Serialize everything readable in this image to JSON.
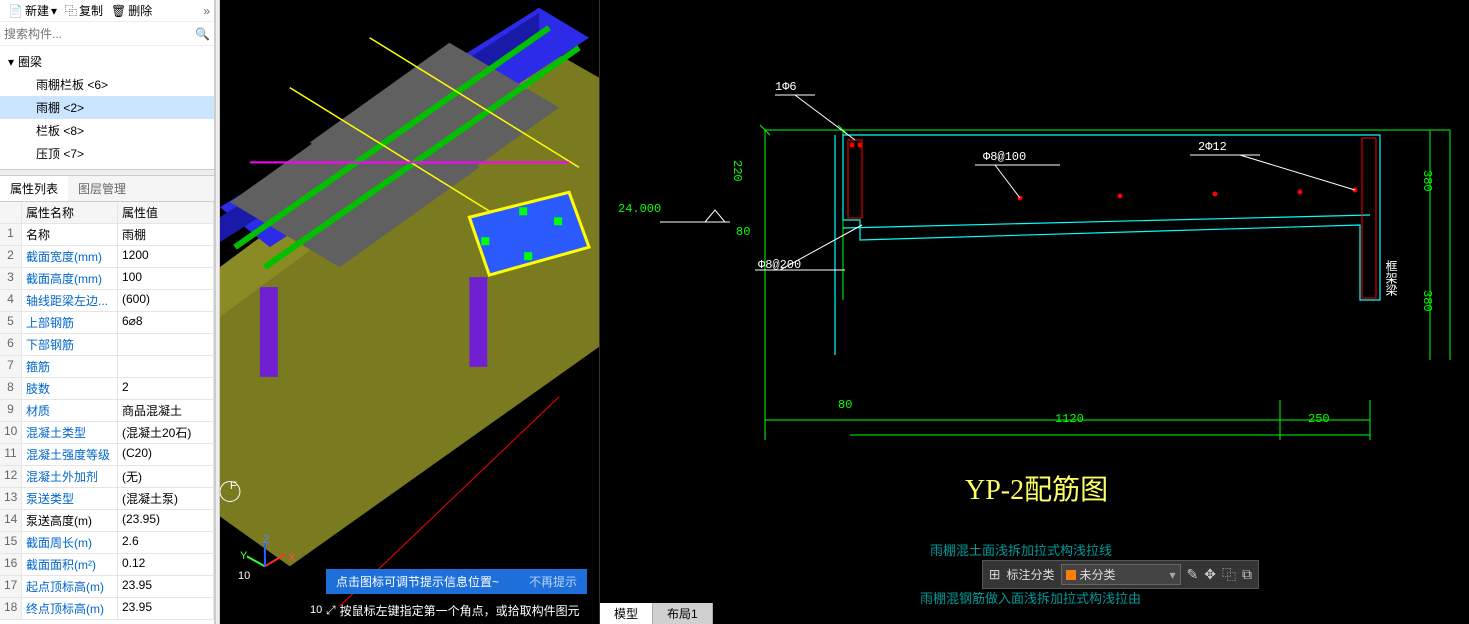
{
  "toolbar": {
    "new": "新建",
    "copy": "复制",
    "del": "删除"
  },
  "search": {
    "placeholder": "搜索构件..."
  },
  "tree": {
    "root": "圈梁",
    "items": [
      {
        "label": "雨棚栏板 <6>"
      },
      {
        "label": "雨棚 <2>",
        "sel": true
      },
      {
        "label": "栏板 <8>"
      },
      {
        "label": "压顶 <7>"
      }
    ]
  },
  "tabs": {
    "prop": "属性列表",
    "layer": "图层管理"
  },
  "header": {
    "name": "属性名称",
    "val": "属性值"
  },
  "props": [
    {
      "n": "名称",
      "v": "雨棚"
    },
    {
      "n": "截面宽度(mm)",
      "v": "1200",
      "b": 1
    },
    {
      "n": "截面高度(mm)",
      "v": "100",
      "b": 1
    },
    {
      "n": "轴线距梁左边...",
      "v": "(600)",
      "b": 1
    },
    {
      "n": "上部钢筋",
      "v": "6⌀8",
      "b": 1
    },
    {
      "n": "下部钢筋",
      "v": "",
      "b": 1
    },
    {
      "n": "箍筋",
      "v": "",
      "b": 1
    },
    {
      "n": "肢数",
      "v": "2",
      "b": 1
    },
    {
      "n": "材质",
      "v": "商品混凝土",
      "b": 1
    },
    {
      "n": "混凝土类型",
      "v": "(混凝土20石)",
      "b": 1
    },
    {
      "n": "混凝土强度等级",
      "v": "(C20)",
      "b": 1
    },
    {
      "n": "混凝土外加剂",
      "v": "(无)",
      "b": 1
    },
    {
      "n": "泵送类型",
      "v": "(混凝土泵)",
      "b": 1
    },
    {
      "n": "泵送高度(m)",
      "v": "(23.95)"
    },
    {
      "n": "截面周长(m)",
      "v": "2.6",
      "b": 1
    },
    {
      "n": "截面面积(m²)",
      "v": "0.12",
      "b": 1
    },
    {
      "n": "起点顶标高(m)",
      "v": "23.95",
      "b": 1
    },
    {
      "n": "终点顶标高(m)",
      "v": "23.95",
      "b": 1
    }
  ],
  "hint": {
    "msg": "点击图标可调节提示信息位置~",
    "dismiss": "不再提示"
  },
  "cmd": "按鼠标左键指定第一个角点，或拾取构件图元",
  "btabs": {
    "model": "模型",
    "layout": "布局1"
  },
  "float": {
    "label": "标注分类",
    "sel": "未分类"
  },
  "cad": {
    "title": "YP-2配筋图",
    "sub1": "雨棚混土面浅拆加拉式构浅拉线",
    "sub2": "雨棚混钢筋做入面浅拆加拉式构浅拉由",
    "elev": "24.000",
    "dims": {
      "d220": "220",
      "d80a": "80",
      "d80b": "80",
      "d1120": "1120",
      "d250": "250",
      "d380a": "380",
      "d380b": "380"
    },
    "labels": {
      "l1": "1Φ6",
      "l2": "Φ8@100",
      "l3": "2Φ12",
      "l4": "Φ8@200",
      "beam": "框架梁"
    },
    "colors": {
      "dim": "#00ff00",
      "detail": "#00ffff",
      "rebar": "#ff0000",
      "leader": "#ffffff",
      "title": "#ffff66"
    }
  },
  "axis": {
    "f": "F",
    "ten": "10",
    "x": "X",
    "y": "Y",
    "z": "Z"
  }
}
